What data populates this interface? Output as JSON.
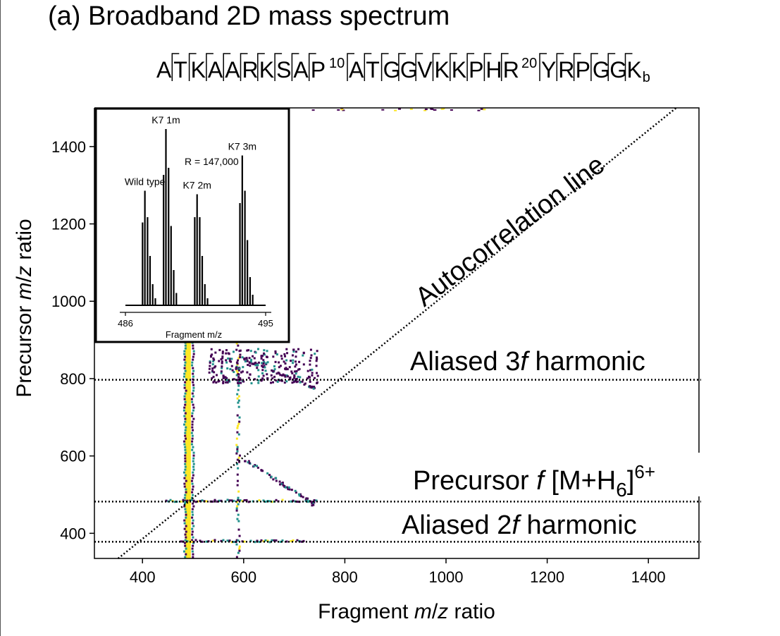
{
  "panel_title": "(a) Broadband 2D mass spectrum",
  "sequence": {
    "residues": [
      "A",
      "T",
      "K",
      "A",
      "A",
      "R",
      "K",
      "S",
      "A",
      "P",
      "A",
      "T",
      "G",
      "G",
      "V",
      "K",
      "K",
      "P",
      "H",
      "R",
      "Y",
      "R",
      "P",
      "G",
      "G",
      "K"
    ],
    "position_markers": [
      {
        "after_index": 9,
        "label": "10"
      },
      {
        "after_index": 19,
        "label": "20"
      }
    ],
    "suffix_subscript": "b"
  },
  "annotations": {
    "autocorrelation": "Autocorrelation line",
    "aliased_3f_a": "Aliased 3",
    "aliased_3f_f": "f",
    "aliased_3f_b": " harmonic",
    "precursor_a": "Precursor ",
    "precursor_f": "f",
    "precursor_b": " [M+H",
    "precursor_sub": "6",
    "precursor_c": "]",
    "precursor_sup": "6+",
    "aliased_2f_a": "Aliased 2",
    "aliased_2f_f": "f",
    "aliased_2f_b": " harmonic"
  },
  "colors": {
    "axis": "#000000",
    "intense": "#fde725",
    "mid": "#21918c",
    "low": "#440154",
    "guide": "#000000"
  },
  "chart_data": [
    {
      "type": "heatmap",
      "title": "(a) Broadband 2D mass spectrum",
      "xlabel": "Fragment m/z ratio",
      "ylabel": "Precursor m/z ratio",
      "xlim": [
        305,
        1500
      ],
      "ylim": [
        335,
        1500
      ],
      "xticks": [
        400,
        600,
        800,
        1000,
        1200,
        1400
      ],
      "yticks": [
        400,
        600,
        800,
        1000,
        1200,
        1400
      ],
      "grid": false,
      "autocorrelation_line": {
        "x": [
          352,
          1455
        ],
        "y": [
          335,
          1500
        ]
      },
      "harmonic_lines": [
        {
          "name": "Aliased 3f harmonic",
          "y": 797
        },
        {
          "name": "Precursor f [M+H6]6+",
          "y": 482
        },
        {
          "name": "Aliased 2f harmonic",
          "y": 378
        }
      ],
      "fragment_columns": [
        {
          "x": 490,
          "ymin": 335,
          "ymax": 910,
          "intensity": "high"
        },
        {
          "x": 588,
          "ymin": 335,
          "ymax": 910,
          "intensity": "medium"
        }
      ],
      "fragment_rows": [
        {
          "y": 482,
          "xmin": 445,
          "xmax": 745
        },
        {
          "y": 378,
          "xmin": 470,
          "xmax": 720
        }
      ],
      "diagonal_features": [
        {
          "x": [
            600,
            735
          ],
          "y": [
            595,
            480
          ]
        },
        {
          "x": [
            590,
            740
          ],
          "y": [
            860,
            780
          ]
        }
      ]
    },
    {
      "type": "bar",
      "inset": true,
      "xlabel": "Fragment m/z",
      "xlim": [
        486,
        495
      ],
      "xticks": [
        486,
        495
      ],
      "annotations": [
        "Wild type",
        "K7 1m",
        "K7 2m",
        "K7 3m",
        "R = 147,000"
      ],
      "peaks": [
        {
          "x": 487.1,
          "y": 0.47
        },
        {
          "x": 487.25,
          "y": 0.65
        },
        {
          "x": 487.42,
          "y": 0.5
        },
        {
          "x": 487.58,
          "y": 0.28
        },
        {
          "x": 487.75,
          "y": 0.12
        },
        {
          "x": 487.92,
          "y": 0.04
        },
        {
          "x": 488.45,
          "y": 0.74
        },
        {
          "x": 488.6,
          "y": 1.0
        },
        {
          "x": 488.77,
          "y": 0.78
        },
        {
          "x": 488.93,
          "y": 0.45
        },
        {
          "x": 489.1,
          "y": 0.2
        },
        {
          "x": 489.27,
          "y": 0.07
        },
        {
          "x": 490.45,
          "y": 0.5
        },
        {
          "x": 490.6,
          "y": 0.63
        },
        {
          "x": 490.77,
          "y": 0.5
        },
        {
          "x": 490.93,
          "y": 0.28
        },
        {
          "x": 491.1,
          "y": 0.12
        },
        {
          "x": 491.27,
          "y": 0.04
        },
        {
          "x": 493.35,
          "y": 0.58
        },
        {
          "x": 493.5,
          "y": 0.85
        },
        {
          "x": 493.67,
          "y": 0.65
        },
        {
          "x": 493.83,
          "y": 0.37
        },
        {
          "x": 494.0,
          "y": 0.16
        },
        {
          "x": 494.17,
          "y": 0.06
        }
      ],
      "peak_labels": [
        {
          "text": "Wild type",
          "x": 487.25,
          "y": 0.65
        },
        {
          "text": "K7 1m",
          "x": 488.6,
          "y": 1.0
        },
        {
          "text": "K7 2m",
          "x": 490.6,
          "y": 0.63
        },
        {
          "text": "K7 3m",
          "x": 493.5,
          "y": 0.85
        }
      ],
      "resolution_label": "R = 147,000"
    }
  ]
}
